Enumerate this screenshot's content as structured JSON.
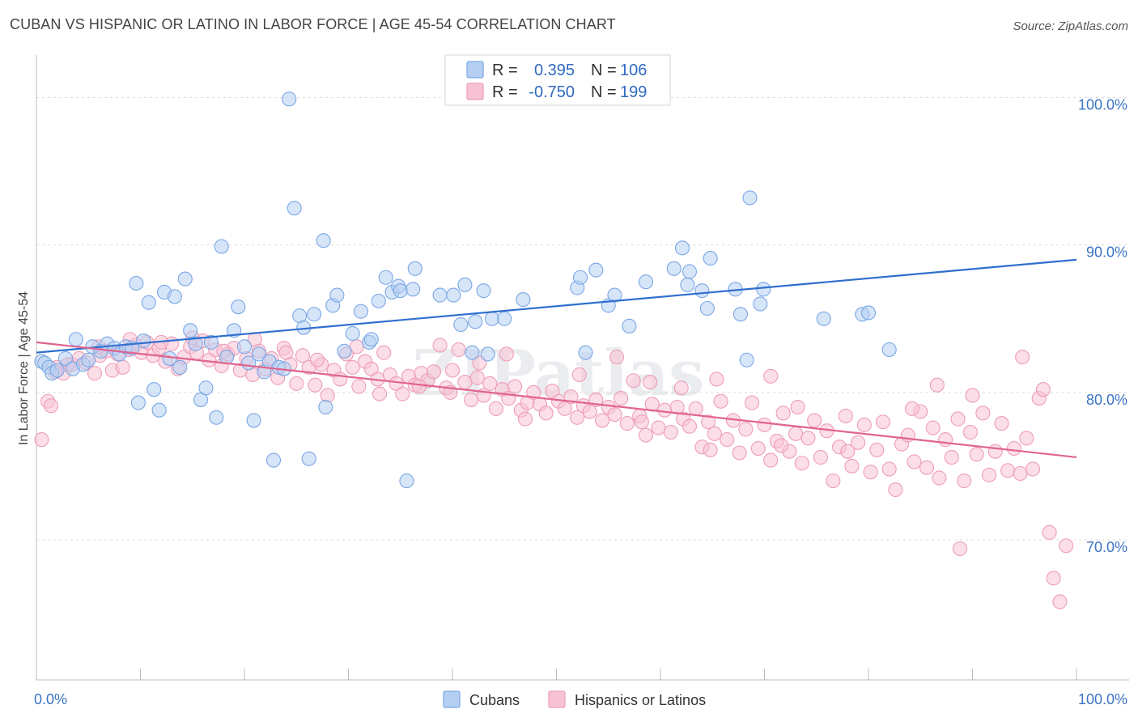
{
  "title": "CUBAN VS HISPANIC OR LATINO IN LABOR FORCE | AGE 45-54 CORRELATION CHART",
  "source": "Source: ZipAtlas.com",
  "watermark": "ZIPatlas",
  "chart_data": {
    "type": "scatter",
    "ylabel": "In Labor Force | Age 45-54",
    "xlabel": "",
    "xlim": [
      0,
      100
    ],
    "ylim": [
      60.5,
      102.5
    ],
    "x_tick_labels": [
      "0.0%",
      "100.0%"
    ],
    "y_ticks": [
      {
        "value": 100,
        "label": "100.0%"
      },
      {
        "value": 90,
        "label": "90.0%"
      },
      {
        "value": 80,
        "label": "80.0%"
      },
      {
        "value": 70,
        "label": "70.0%"
      }
    ],
    "grid": true,
    "legend": {
      "placement": "top-center",
      "rows": [
        {
          "r_label": "R =",
          "r_value": "0.395",
          "n_label": "N =",
          "n_value": "106"
        },
        {
          "r_label": "R =",
          "r_value": "-0.750",
          "n_label": "N =",
          "n_value": "199"
        }
      ]
    },
    "series": [
      {
        "name": "Cubans",
        "color": "#7aa7e6",
        "fill": "#b5cff2",
        "line_color": "#2f6ecf",
        "trend": {
          "x": [
            0,
            100
          ],
          "y": [
            82.7,
            89.0
          ]
        },
        "points": [
          [
            0.5,
            82.1
          ],
          [
            0.8,
            82.0
          ],
          [
            1.2,
            81.7
          ],
          [
            1.5,
            81.3
          ],
          [
            2.0,
            81.5
          ],
          [
            2.8,
            82.3
          ],
          [
            3.5,
            81.6
          ],
          [
            3.8,
            83.6
          ],
          [
            4.5,
            81.9
          ],
          [
            5.0,
            82.2
          ],
          [
            5.4,
            83.1
          ],
          [
            6.2,
            82.8
          ],
          [
            6.8,
            83.3
          ],
          [
            7.5,
            83.0
          ],
          [
            8.0,
            82.6
          ],
          [
            8.6,
            83.1
          ],
          [
            9.2,
            83.0
          ],
          [
            9.6,
            87.4
          ],
          [
            9.8,
            79.3
          ],
          [
            10.3,
            83.5
          ],
          [
            10.8,
            86.1
          ],
          [
            11.3,
            80.2
          ],
          [
            11.8,
            78.8
          ],
          [
            12.3,
            86.8
          ],
          [
            12.8,
            82.3
          ],
          [
            13.3,
            86.5
          ],
          [
            13.8,
            81.7
          ],
          [
            14.3,
            87.7
          ],
          [
            14.8,
            84.2
          ],
          [
            15.3,
            83.3
          ],
          [
            15.8,
            79.5
          ],
          [
            16.3,
            80.3
          ],
          [
            16.8,
            83.4
          ],
          [
            17.3,
            78.3
          ],
          [
            17.8,
            89.9
          ],
          [
            18.3,
            82.4
          ],
          [
            19.0,
            84.2
          ],
          [
            19.4,
            85.8
          ],
          [
            20.0,
            83.1
          ],
          [
            20.4,
            82.0
          ],
          [
            20.9,
            78.1
          ],
          [
            21.4,
            82.6
          ],
          [
            21.9,
            81.4
          ],
          [
            22.4,
            82.1
          ],
          [
            22.8,
            75.4
          ],
          [
            23.3,
            81.7
          ],
          [
            23.8,
            81.6
          ],
          [
            24.3,
            99.9
          ],
          [
            24.8,
            92.5
          ],
          [
            25.3,
            85.2
          ],
          [
            25.7,
            84.4
          ],
          [
            26.2,
            75.5
          ],
          [
            26.7,
            85.3
          ],
          [
            27.6,
            90.3
          ],
          [
            27.8,
            79.0
          ],
          [
            28.5,
            85.9
          ],
          [
            28.9,
            86.6
          ],
          [
            29.6,
            82.8
          ],
          [
            30.4,
            84.0
          ],
          [
            31.2,
            85.5
          ],
          [
            32.0,
            83.4
          ],
          [
            32.2,
            83.6
          ],
          [
            32.9,
            86.2
          ],
          [
            33.6,
            87.8
          ],
          [
            34.2,
            86.8
          ],
          [
            34.8,
            87.2
          ],
          [
            35.0,
            86.9
          ],
          [
            35.6,
            74.0
          ],
          [
            36.2,
            87.0
          ],
          [
            36.4,
            88.4
          ],
          [
            38.8,
            86.6
          ],
          [
            40.1,
            86.6
          ],
          [
            40.8,
            84.6
          ],
          [
            41.2,
            87.3
          ],
          [
            41.9,
            82.7
          ],
          [
            42.2,
            84.8
          ],
          [
            43.0,
            86.9
          ],
          [
            43.4,
            82.6
          ],
          [
            43.8,
            85.0
          ],
          [
            45.0,
            85.0
          ],
          [
            46.8,
            86.3
          ],
          [
            52.0,
            87.1
          ],
          [
            52.3,
            87.8
          ],
          [
            52.8,
            82.7
          ],
          [
            53.8,
            88.3
          ],
          [
            55.0,
            85.9
          ],
          [
            55.6,
            86.6
          ],
          [
            57.0,
            84.5
          ],
          [
            58.6,
            87.5
          ],
          [
            61.3,
            88.4
          ],
          [
            62.1,
            89.8
          ],
          [
            62.6,
            87.3
          ],
          [
            62.8,
            88.2
          ],
          [
            64.0,
            86.9
          ],
          [
            64.5,
            85.7
          ],
          [
            64.8,
            89.1
          ],
          [
            67.2,
            87.0
          ],
          [
            67.7,
            85.3
          ],
          [
            68.3,
            82.2
          ],
          [
            68.6,
            93.2
          ],
          [
            69.6,
            86.0
          ],
          [
            69.9,
            87.0
          ],
          [
            75.7,
            85.0
          ],
          [
            79.4,
            85.3
          ],
          [
            80.0,
            85.4
          ],
          [
            82.0,
            82.9
          ]
        ]
      },
      {
        "name": "Hispanics or Latinos",
        "color": "#ee9db8",
        "fill": "#f7c3d4",
        "line_color": "#e0648f",
        "trend": {
          "x": [
            0,
            100
          ],
          "y": [
            83.4,
            75.6
          ]
        },
        "points": [
          [
            0.5,
            76.8
          ],
          [
            1.1,
            79.4
          ],
          [
            1.4,
            79.1
          ],
          [
            2.0,
            81.7
          ],
          [
            2.6,
            81.3
          ],
          [
            3.4,
            81.9
          ],
          [
            4.1,
            82.3
          ],
          [
            4.8,
            82.0
          ],
          [
            5.6,
            81.3
          ],
          [
            6.1,
            82.5
          ],
          [
            6.7,
            82.8
          ],
          [
            7.3,
            81.5
          ],
          [
            7.8,
            82.6
          ],
          [
            8.3,
            81.7
          ],
          [
            8.9,
            82.9
          ],
          [
            9.5,
            83.2
          ],
          [
            10.1,
            82.7
          ],
          [
            10.6,
            83.4
          ],
          [
            11.2,
            82.5
          ],
          [
            11.8,
            83.0
          ],
          [
            12.4,
            82.1
          ],
          [
            13.0,
            83.3
          ],
          [
            13.6,
            81.6
          ],
          [
            14.2,
            82.4
          ],
          [
            14.8,
            83.1
          ],
          [
            15.4,
            82.7
          ],
          [
            16.0,
            83.5
          ],
          [
            16.6,
            82.2
          ],
          [
            17.2,
            82.9
          ],
          [
            17.8,
            81.8
          ],
          [
            18.4,
            82.6
          ],
          [
            19.0,
            83.0
          ],
          [
            19.6,
            81.5
          ],
          [
            20.2,
            82.3
          ],
          [
            20.8,
            81.2
          ],
          [
            21.4,
            82.8
          ],
          [
            22.0,
            81.6
          ],
          [
            22.6,
            82.3
          ],
          [
            23.2,
            81.0
          ],
          [
            23.8,
            83.0
          ],
          [
            24.4,
            81.9
          ],
          [
            25.0,
            80.6
          ],
          [
            25.6,
            82.5
          ],
          [
            26.2,
            81.7
          ],
          [
            26.8,
            80.5
          ],
          [
            27.4,
            81.9
          ],
          [
            28.0,
            79.8
          ],
          [
            28.6,
            81.5
          ],
          [
            29.2,
            80.9
          ],
          [
            29.8,
            82.6
          ],
          [
            30.4,
            81.7
          ],
          [
            31.0,
            80.4
          ],
          [
            31.6,
            82.1
          ],
          [
            32.2,
            81.6
          ],
          [
            32.8,
            80.9
          ],
          [
            33.4,
            82.7
          ],
          [
            34.0,
            81.2
          ],
          [
            34.6,
            80.6
          ],
          [
            35.2,
            79.9
          ],
          [
            35.8,
            81.1
          ],
          [
            36.4,
            80.5
          ],
          [
            37.0,
            81.3
          ],
          [
            37.6,
            80.8
          ],
          [
            38.2,
            81.4
          ],
          [
            38.8,
            83.2
          ],
          [
            39.4,
            80.3
          ],
          [
            40.0,
            81.5
          ],
          [
            40.6,
            82.9
          ],
          [
            41.2,
            80.7
          ],
          [
            41.8,
            79.5
          ],
          [
            42.4,
            81.0
          ],
          [
            43.0,
            79.8
          ],
          [
            43.6,
            80.6
          ],
          [
            44.2,
            78.9
          ],
          [
            44.8,
            80.2
          ],
          [
            45.4,
            79.6
          ],
          [
            46.0,
            80.4
          ],
          [
            46.6,
            78.8
          ],
          [
            47.2,
            79.3
          ],
          [
            47.8,
            80.0
          ],
          [
            48.4,
            79.2
          ],
          [
            49.0,
            78.6
          ],
          [
            49.6,
            80.1
          ],
          [
            50.2,
            79.4
          ],
          [
            50.8,
            78.9
          ],
          [
            51.4,
            79.7
          ],
          [
            52.0,
            78.3
          ],
          [
            52.6,
            79.1
          ],
          [
            53.2,
            78.7
          ],
          [
            53.8,
            79.5
          ],
          [
            54.4,
            78.1
          ],
          [
            55.0,
            79.0
          ],
          [
            55.6,
            78.5
          ],
          [
            56.2,
            79.6
          ],
          [
            56.8,
            77.9
          ],
          [
            57.4,
            80.8
          ],
          [
            58.0,
            78.4
          ],
          [
            58.6,
            77.1
          ],
          [
            59.2,
            79.2
          ],
          [
            59.8,
            77.6
          ],
          [
            60.4,
            78.8
          ],
          [
            61.0,
            77.3
          ],
          [
            61.6,
            79.0
          ],
          [
            62.2,
            78.2
          ],
          [
            62.8,
            77.7
          ],
          [
            63.4,
            78.9
          ],
          [
            64.0,
            76.3
          ],
          [
            64.6,
            78.0
          ],
          [
            65.2,
            77.2
          ],
          [
            65.8,
            79.4
          ],
          [
            66.4,
            76.8
          ],
          [
            67.0,
            78.1
          ],
          [
            67.6,
            75.9
          ],
          [
            68.2,
            77.5
          ],
          [
            68.8,
            79.3
          ],
          [
            69.4,
            76.2
          ],
          [
            70.0,
            77.8
          ],
          [
            70.6,
            75.4
          ],
          [
            71.2,
            76.7
          ],
          [
            71.8,
            78.6
          ],
          [
            72.4,
            76.0
          ],
          [
            73.0,
            77.2
          ],
          [
            73.6,
            75.2
          ],
          [
            74.2,
            76.9
          ],
          [
            74.8,
            78.1
          ],
          [
            75.4,
            75.6
          ],
          [
            76.0,
            77.4
          ],
          [
            76.6,
            74.0
          ],
          [
            77.2,
            76.3
          ],
          [
            77.8,
            78.4
          ],
          [
            78.4,
            75.0
          ],
          [
            79.0,
            76.6
          ],
          [
            79.6,
            77.8
          ],
          [
            80.2,
            74.6
          ],
          [
            80.8,
            76.1
          ],
          [
            81.4,
            78.0
          ],
          [
            82.0,
            74.8
          ],
          [
            82.6,
            73.4
          ],
          [
            83.2,
            76.5
          ],
          [
            83.8,
            77.1
          ],
          [
            84.4,
            75.3
          ],
          [
            85.0,
            78.7
          ],
          [
            85.6,
            74.9
          ],
          [
            86.2,
            77.6
          ],
          [
            86.8,
            74.2
          ],
          [
            87.4,
            76.8
          ],
          [
            88.0,
            75.6
          ],
          [
            88.6,
            78.2
          ],
          [
            89.2,
            74.0
          ],
          [
            89.8,
            77.3
          ],
          [
            90.4,
            75.8
          ],
          [
            91.0,
            78.6
          ],
          [
            91.6,
            74.4
          ],
          [
            92.2,
            76.0
          ],
          [
            92.8,
            77.9
          ],
          [
            93.4,
            74.7
          ],
          [
            94.0,
            76.2
          ],
          [
            94.6,
            74.5
          ],
          [
            95.2,
            76.9
          ],
          [
            95.8,
            74.8
          ],
          [
            96.4,
            79.6
          ],
          [
            96.8,
            80.2
          ],
          [
            97.4,
            70.5
          ],
          [
            97.8,
            67.4
          ],
          [
            98.4,
            65.8
          ],
          [
            99.0,
            69.6
          ],
          [
            88.8,
            69.4
          ],
          [
            86.6,
            80.5
          ],
          [
            94.8,
            82.4
          ],
          [
            90.0,
            79.8
          ],
          [
            65.4,
            80.9
          ],
          [
            70.6,
            81.1
          ],
          [
            73.2,
            79.0
          ],
          [
            62.0,
            80.3
          ],
          [
            55.8,
            82.4
          ],
          [
            59.0,
            80.7
          ],
          [
            45.2,
            82.6
          ],
          [
            42.6,
            82.0
          ],
          [
            36.8,
            80.4
          ],
          [
            30.8,
            83.1
          ],
          [
            27.0,
            82.2
          ],
          [
            24.0,
            82.7
          ],
          [
            21.0,
            83.6
          ],
          [
            18.0,
            82.8
          ],
          [
            15.0,
            83.7
          ],
          [
            12.0,
            83.4
          ],
          [
            9.0,
            83.6
          ],
          [
            6.0,
            83.1
          ],
          [
            3.0,
            81.9
          ],
          [
            1.8,
            81.4
          ],
          [
            33.0,
            79.9
          ],
          [
            39.8,
            80.0
          ],
          [
            47.0,
            78.2
          ],
          [
            52.2,
            81.2
          ],
          [
            58.2,
            78.0
          ],
          [
            64.8,
            76.1
          ],
          [
            71.6,
            76.4
          ],
          [
            78.0,
            76.0
          ],
          [
            84.2,
            78.9
          ]
        ]
      }
    ]
  }
}
